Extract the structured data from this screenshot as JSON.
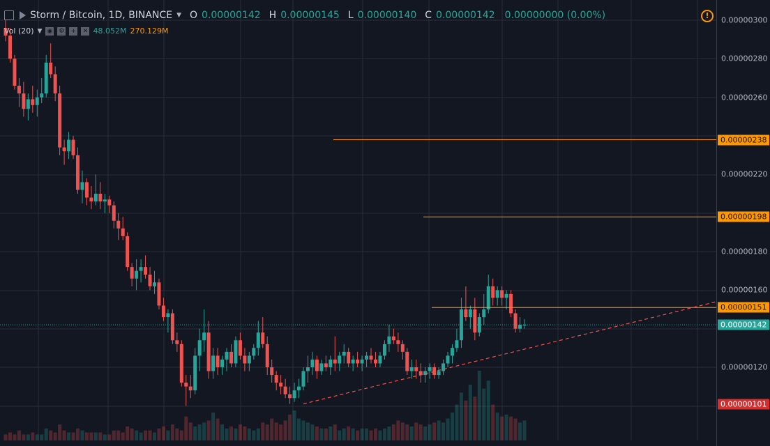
{
  "header": {
    "symbol": "Storm / Bitcoin, 1D, BINANCE",
    "open_label": "O",
    "open": "0.00000142",
    "high_label": "H",
    "high": "0.00000145",
    "low_label": "L",
    "low": "0.00000140",
    "close_label": "C",
    "close": "0.00000142",
    "change": "0.00000000 (0.00%)",
    "warning_glyph": "!"
  },
  "volume_legend": {
    "label": "Vol (20)",
    "value1": "48.052M",
    "value2": "270.129M",
    "icons": [
      "eye-icon",
      "gear-icon",
      "plus-icon",
      "close-icon"
    ]
  },
  "colors": {
    "background": "#131722",
    "up": "#26a69a",
    "down": "#ef5350",
    "level_line": "#ff9800",
    "trend_line": "#ef5350",
    "current_price": "#26a69a",
    "low_tag": "#d32f2f"
  },
  "price_axis": {
    "ticks": [
      "0.00000300",
      "0.00000280",
      "0.00000260",
      "0.00000220",
      "0.00000180",
      "0.00000160",
      "0.00000120"
    ],
    "tags": [
      {
        "name": "resistance-238",
        "text": "0.00000238",
        "kind": "level"
      },
      {
        "name": "resistance-198",
        "text": "0.00000198",
        "kind": "level"
      },
      {
        "name": "resistance-151",
        "text": "0.00000151",
        "kind": "level"
      },
      {
        "name": "current-price",
        "text": "0.00000142",
        "kind": "current"
      },
      {
        "name": "low-price",
        "text": "0.00000101",
        "kind": "low"
      }
    ]
  },
  "chart_data": {
    "type": "candlestick",
    "title": "Storm / Bitcoin, 1D, BINANCE",
    "ylim": [
      9.6e-07,
      3.02e-06
    ],
    "grid": true,
    "candles": [
      {
        "o": 296,
        "h": 300,
        "l": 289,
        "c": 292
      },
      {
        "o": 292,
        "h": 296,
        "l": 278,
        "c": 280
      },
      {
        "o": 280,
        "h": 282,
        "l": 264,
        "c": 266
      },
      {
        "o": 266,
        "h": 270,
        "l": 255,
        "c": 262
      },
      {
        "o": 262,
        "h": 268,
        "l": 250,
        "c": 254
      },
      {
        "o": 254,
        "h": 262,
        "l": 248,
        "c": 259
      },
      {
        "o": 259,
        "h": 266,
        "l": 252,
        "c": 256
      },
      {
        "o": 256,
        "h": 264,
        "l": 250,
        "c": 260
      },
      {
        "o": 260,
        "h": 270,
        "l": 257,
        "c": 262
      },
      {
        "o": 262,
        "h": 282,
        "l": 260,
        "c": 278
      },
      {
        "o": 278,
        "h": 288,
        "l": 270,
        "c": 272
      },
      {
        "o": 272,
        "h": 276,
        "l": 258,
        "c": 262
      },
      {
        "o": 262,
        "h": 266,
        "l": 230,
        "c": 234
      },
      {
        "o": 234,
        "h": 238,
        "l": 225,
        "c": 232
      },
      {
        "o": 232,
        "h": 242,
        "l": 228,
        "c": 238
      },
      {
        "o": 238,
        "h": 240,
        "l": 228,
        "c": 230
      },
      {
        "o": 230,
        "h": 234,
        "l": 210,
        "c": 212
      },
      {
        "o": 212,
        "h": 222,
        "l": 205,
        "c": 216
      },
      {
        "o": 216,
        "h": 218,
        "l": 204,
        "c": 208
      },
      {
        "o": 208,
        "h": 214,
        "l": 202,
        "c": 206
      },
      {
        "o": 206,
        "h": 220,
        "l": 204,
        "c": 210
      },
      {
        "o": 210,
        "h": 216,
        "l": 202,
        "c": 206
      },
      {
        "o": 206,
        "h": 210,
        "l": 200,
        "c": 207
      },
      {
        "o": 207,
        "h": 209,
        "l": 200,
        "c": 204
      },
      {
        "o": 204,
        "h": 206,
        "l": 192,
        "c": 196
      },
      {
        "o": 196,
        "h": 200,
        "l": 186,
        "c": 192
      },
      {
        "o": 192,
        "h": 198,
        "l": 186,
        "c": 188
      },
      {
        "o": 188,
        "h": 190,
        "l": 170,
        "c": 172
      },
      {
        "o": 172,
        "h": 174,
        "l": 162,
        "c": 166
      },
      {
        "o": 166,
        "h": 176,
        "l": 160,
        "c": 170
      },
      {
        "o": 170,
        "h": 176,
        "l": 164,
        "c": 172
      },
      {
        "o": 172,
        "h": 178,
        "l": 166,
        "c": 168
      },
      {
        "o": 168,
        "h": 172,
        "l": 160,
        "c": 162
      },
      {
        "o": 162,
        "h": 170,
        "l": 158,
        "c": 164
      },
      {
        "o": 164,
        "h": 166,
        "l": 150,
        "c": 152
      },
      {
        "o": 152,
        "h": 156,
        "l": 144,
        "c": 146
      },
      {
        "o": 146,
        "h": 150,
        "l": 138,
        "c": 148
      },
      {
        "o": 148,
        "h": 150,
        "l": 132,
        "c": 134
      },
      {
        "o": 134,
        "h": 138,
        "l": 128,
        "c": 132
      },
      {
        "o": 132,
        "h": 134,
        "l": 110,
        "c": 112
      },
      {
        "o": 112,
        "h": 116,
        "l": 100,
        "c": 110
      },
      {
        "o": 110,
        "h": 116,
        "l": 104,
        "c": 108
      },
      {
        "o": 108,
        "h": 130,
        "l": 106,
        "c": 126
      },
      {
        "o": 126,
        "h": 140,
        "l": 118,
        "c": 134
      },
      {
        "o": 134,
        "h": 150,
        "l": 128,
        "c": 138
      },
      {
        "o": 138,
        "h": 144,
        "l": 114,
        "c": 118
      },
      {
        "o": 118,
        "h": 130,
        "l": 114,
        "c": 126
      },
      {
        "o": 126,
        "h": 130,
        "l": 116,
        "c": 120
      },
      {
        "o": 120,
        "h": 126,
        "l": 116,
        "c": 124
      },
      {
        "o": 124,
        "h": 130,
        "l": 118,
        "c": 128
      },
      {
        "o": 128,
        "h": 132,
        "l": 120,
        "c": 122
      },
      {
        "o": 122,
        "h": 136,
        "l": 120,
        "c": 134
      },
      {
        "o": 134,
        "h": 138,
        "l": 124,
        "c": 126
      },
      {
        "o": 126,
        "h": 130,
        "l": 118,
        "c": 122
      },
      {
        "o": 122,
        "h": 128,
        "l": 118,
        "c": 126
      },
      {
        "o": 126,
        "h": 132,
        "l": 124,
        "c": 130
      },
      {
        "o": 130,
        "h": 144,
        "l": 126,
        "c": 138
      },
      {
        "o": 138,
        "h": 146,
        "l": 130,
        "c": 132
      },
      {
        "o": 132,
        "h": 136,
        "l": 116,
        "c": 120
      },
      {
        "o": 120,
        "h": 124,
        "l": 112,
        "c": 116
      },
      {
        "o": 116,
        "h": 118,
        "l": 108,
        "c": 112
      },
      {
        "o": 112,
        "h": 116,
        "l": 106,
        "c": 110
      },
      {
        "o": 110,
        "h": 114,
        "l": 104,
        "c": 106
      },
      {
        "o": 106,
        "h": 110,
        "l": 101,
        "c": 104
      },
      {
        "o": 104,
        "h": 112,
        "l": 102,
        "c": 108
      },
      {
        "o": 108,
        "h": 114,
        "l": 104,
        "c": 110
      },
      {
        "o": 110,
        "h": 120,
        "l": 108,
        "c": 118
      },
      {
        "o": 118,
        "h": 126,
        "l": 112,
        "c": 120
      },
      {
        "o": 120,
        "h": 128,
        "l": 116,
        "c": 124
      },
      {
        "o": 124,
        "h": 126,
        "l": 114,
        "c": 118
      },
      {
        "o": 118,
        "h": 124,
        "l": 116,
        "c": 122
      },
      {
        "o": 122,
        "h": 126,
        "l": 118,
        "c": 120
      },
      {
        "o": 120,
        "h": 126,
        "l": 116,
        "c": 124
      },
      {
        "o": 124,
        "h": 136,
        "l": 118,
        "c": 122
      },
      {
        "o": 122,
        "h": 128,
        "l": 118,
        "c": 126
      },
      {
        "o": 126,
        "h": 132,
        "l": 122,
        "c": 128
      },
      {
        "o": 128,
        "h": 130,
        "l": 120,
        "c": 122
      },
      {
        "o": 122,
        "h": 126,
        "l": 118,
        "c": 124
      },
      {
        "o": 124,
        "h": 128,
        "l": 120,
        "c": 122
      },
      {
        "o": 122,
        "h": 126,
        "l": 118,
        "c": 124
      },
      {
        "o": 124,
        "h": 128,
        "l": 120,
        "c": 126
      },
      {
        "o": 126,
        "h": 130,
        "l": 122,
        "c": 124
      },
      {
        "o": 124,
        "h": 128,
        "l": 120,
        "c": 122
      },
      {
        "o": 122,
        "h": 128,
        "l": 120,
        "c": 126
      },
      {
        "o": 126,
        "h": 134,
        "l": 124,
        "c": 132
      },
      {
        "o": 132,
        "h": 142,
        "l": 128,
        "c": 136
      },
      {
        "o": 136,
        "h": 140,
        "l": 132,
        "c": 134
      },
      {
        "o": 134,
        "h": 138,
        "l": 128,
        "c": 132
      },
      {
        "o": 132,
        "h": 134,
        "l": 124,
        "c": 128
      },
      {
        "o": 128,
        "h": 130,
        "l": 116,
        "c": 118
      },
      {
        "o": 118,
        "h": 124,
        "l": 114,
        "c": 120
      },
      {
        "o": 120,
        "h": 124,
        "l": 114,
        "c": 118
      },
      {
        "o": 118,
        "h": 122,
        "l": 112,
        "c": 116
      },
      {
        "o": 116,
        "h": 120,
        "l": 112,
        "c": 118
      },
      {
        "o": 118,
        "h": 122,
        "l": 114,
        "c": 120
      },
      {
        "o": 120,
        "h": 122,
        "l": 114,
        "c": 116
      },
      {
        "o": 116,
        "h": 120,
        "l": 114,
        "c": 118
      },
      {
        "o": 118,
        "h": 124,
        "l": 116,
        "c": 122
      },
      {
        "o": 122,
        "h": 128,
        "l": 120,
        "c": 126
      },
      {
        "o": 126,
        "h": 132,
        "l": 122,
        "c": 130
      },
      {
        "o": 130,
        "h": 140,
        "l": 128,
        "c": 134
      },
      {
        "o": 134,
        "h": 156,
        "l": 130,
        "c": 150
      },
      {
        "o": 150,
        "h": 162,
        "l": 144,
        "c": 146
      },
      {
        "o": 146,
        "h": 152,
        "l": 140,
        "c": 150
      },
      {
        "o": 150,
        "h": 156,
        "l": 134,
        "c": 138
      },
      {
        "o": 138,
        "h": 148,
        "l": 136,
        "c": 146
      },
      {
        "o": 146,
        "h": 158,
        "l": 142,
        "c": 150
      },
      {
        "o": 150,
        "h": 168,
        "l": 148,
        "c": 162
      },
      {
        "o": 162,
        "h": 166,
        "l": 152,
        "c": 156
      },
      {
        "o": 156,
        "h": 162,
        "l": 152,
        "c": 160
      },
      {
        "o": 160,
        "h": 162,
        "l": 152,
        "c": 156
      },
      {
        "o": 156,
        "h": 160,
        "l": 150,
        "c": 158
      },
      {
        "o": 158,
        "h": 160,
        "l": 146,
        "c": 148
      },
      {
        "o": 148,
        "h": 150,
        "l": 138,
        "c": 140
      },
      {
        "o": 140,
        "h": 146,
        "l": 138,
        "c": 142
      },
      {
        "o": 142,
        "h": 145,
        "l": 140,
        "c": 142
      }
    ],
    "volume": [
      3,
      4,
      3,
      5,
      3,
      3,
      4,
      3,
      3,
      6,
      5,
      4,
      8,
      5,
      4,
      4,
      6,
      5,
      4,
      4,
      4,
      4,
      3,
      3,
      5,
      5,
      4,
      7,
      6,
      5,
      4,
      5,
      5,
      4,
      6,
      7,
      5,
      8,
      6,
      5,
      12,
      9,
      7,
      8,
      9,
      10,
      14,
      11,
      8,
      6,
      7,
      6,
      8,
      7,
      6,
      5,
      6,
      9,
      8,
      11,
      9,
      8,
      10,
      13,
      15,
      11,
      10,
      9,
      8,
      7,
      6,
      6,
      7,
      8,
      5,
      6,
      7,
      6,
      5,
      6,
      6,
      5,
      6,
      5,
      6,
      7,
      8,
      10,
      9,
      8,
      7,
      9,
      8,
      7,
      8,
      9,
      10,
      9,
      11,
      14,
      18,
      24,
      20,
      28,
      22,
      35,
      26,
      30,
      18,
      14,
      12,
      13,
      12,
      11,
      9,
      10
    ],
    "horizontal_levels": [
      2.38e-06,
      1.98e-06,
      1.51e-06
    ],
    "trendline": {
      "from_index": 66,
      "from_price": 1.01e-06,
      "to_index": 118,
      "to_price": 1.54e-06
    }
  }
}
